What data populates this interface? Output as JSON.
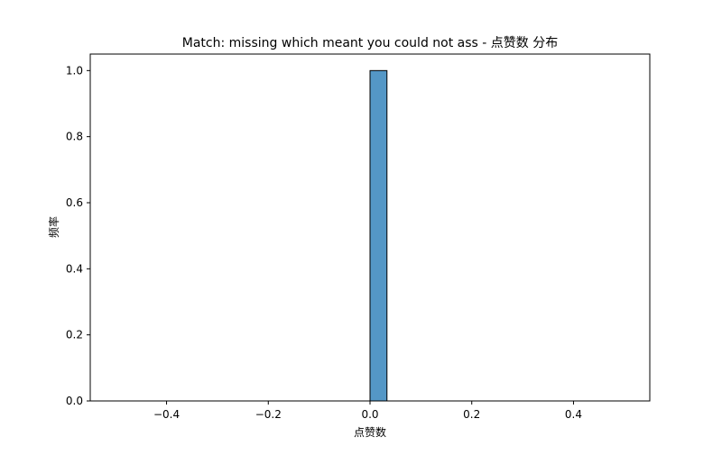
{
  "chart_data": {
    "type": "bar",
    "title": "Match: missing which meant you could not ass - 点赞数 分布",
    "xlabel": "点赞数",
    "ylabel": "频率",
    "xlim": [
      -0.55,
      0.55
    ],
    "ylim": [
      0,
      1.05
    ],
    "xticks": [
      -0.4,
      -0.2,
      0.0,
      0.2,
      0.4
    ],
    "xtick_labels": [
      "−0.4",
      "−0.2",
      "0.0",
      "0.2",
      "0.4"
    ],
    "yticks": [
      0.0,
      0.2,
      0.4,
      0.6,
      0.8,
      1.0
    ],
    "ytick_labels": [
      "0.0",
      "0.2",
      "0.4",
      "0.6",
      "0.8",
      "1.0"
    ],
    "grid": false,
    "legend": "none",
    "bar_color": "#5497c6",
    "bar_edge_color": "#000000",
    "bins": [
      {
        "x0": -0.5,
        "x1": -0.4667,
        "value": 0
      },
      {
        "x0": -0.4667,
        "x1": -0.4333,
        "value": 0
      },
      {
        "x0": -0.4333,
        "x1": -0.4,
        "value": 0
      },
      {
        "x0": -0.4,
        "x1": -0.3667,
        "value": 0
      },
      {
        "x0": -0.3667,
        "x1": -0.3333,
        "value": 0
      },
      {
        "x0": -0.3333,
        "x1": -0.3,
        "value": 0
      },
      {
        "x0": -0.3,
        "x1": -0.2667,
        "value": 0
      },
      {
        "x0": -0.2667,
        "x1": -0.2333,
        "value": 0
      },
      {
        "x0": -0.2333,
        "x1": -0.2,
        "value": 0
      },
      {
        "x0": -0.2,
        "x1": -0.1667,
        "value": 0
      },
      {
        "x0": -0.1667,
        "x1": -0.1333,
        "value": 0
      },
      {
        "x0": -0.1333,
        "x1": -0.1,
        "value": 0
      },
      {
        "x0": -0.1,
        "x1": -0.0667,
        "value": 0
      },
      {
        "x0": -0.0667,
        "x1": -0.0333,
        "value": 0
      },
      {
        "x0": -0.0333,
        "x1": 0.0,
        "value": 0
      },
      {
        "x0": 0.0,
        "x1": 0.0333,
        "value": 1.0
      },
      {
        "x0": 0.0333,
        "x1": 0.0667,
        "value": 0
      },
      {
        "x0": 0.0667,
        "x1": 0.1,
        "value": 0
      },
      {
        "x0": 0.1,
        "x1": 0.1333,
        "value": 0
      },
      {
        "x0": 0.1333,
        "x1": 0.1667,
        "value": 0
      },
      {
        "x0": 0.1667,
        "x1": 0.2,
        "value": 0
      },
      {
        "x0": 0.2,
        "x1": 0.2333,
        "value": 0
      },
      {
        "x0": 0.2333,
        "x1": 0.2667,
        "value": 0
      },
      {
        "x0": 0.2667,
        "x1": 0.3,
        "value": 0
      },
      {
        "x0": 0.3,
        "x1": 0.3333,
        "value": 0
      },
      {
        "x0": 0.3333,
        "x1": 0.3667,
        "value": 0
      },
      {
        "x0": 0.3667,
        "x1": 0.4,
        "value": 0
      },
      {
        "x0": 0.4,
        "x1": 0.4333,
        "value": 0
      },
      {
        "x0": 0.4333,
        "x1": 0.4667,
        "value": 0
      },
      {
        "x0": 0.4667,
        "x1": 0.5,
        "value": 0
      }
    ]
  }
}
